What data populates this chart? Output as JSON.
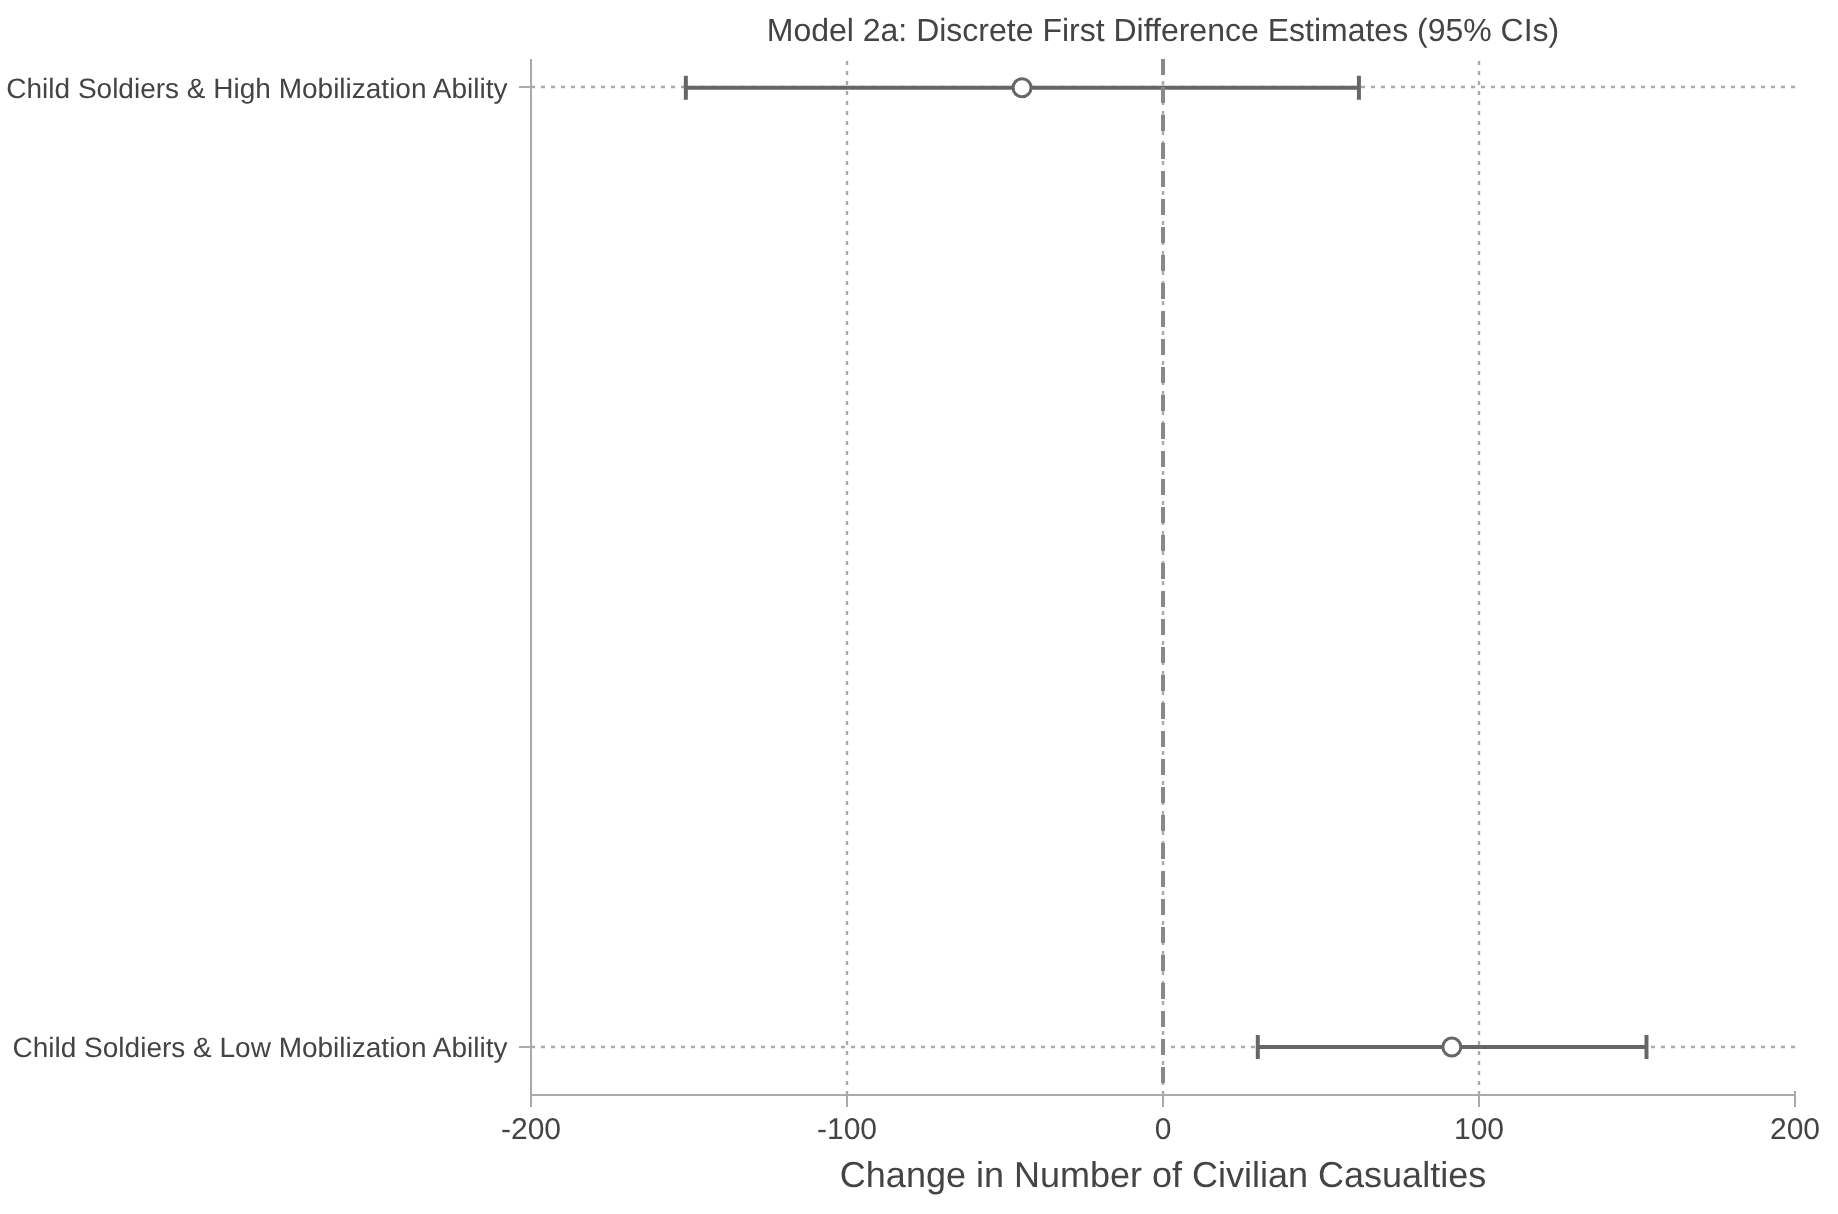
{
  "chart_data": {
    "type": "scatter",
    "orientation": "horizontal",
    "title": "Model 2a: Discrete First Difference Estimates (95% CIs)",
    "xlabel": "Change in Number of Civilian Casualties",
    "categories": [
      "Child Soldiers & High Mobilization Ability",
      "Child Soldiers & Low Mobilization Ability"
    ],
    "values": [
      -44.6,
      91.4
    ],
    "errors": [
      [
        -151,
        62
      ],
      [
        30,
        153
      ]
    ],
    "color": "#666666",
    "marker": "circle",
    "xlim": [
      -200,
      200
    ],
    "xticks": [
      -200,
      -100,
      0,
      100,
      200
    ],
    "ref_lines": [
      {
        "axis": "x",
        "value": 0,
        "line_style": "dashed",
        "color": "#888888"
      }
    ],
    "grid": true
  }
}
